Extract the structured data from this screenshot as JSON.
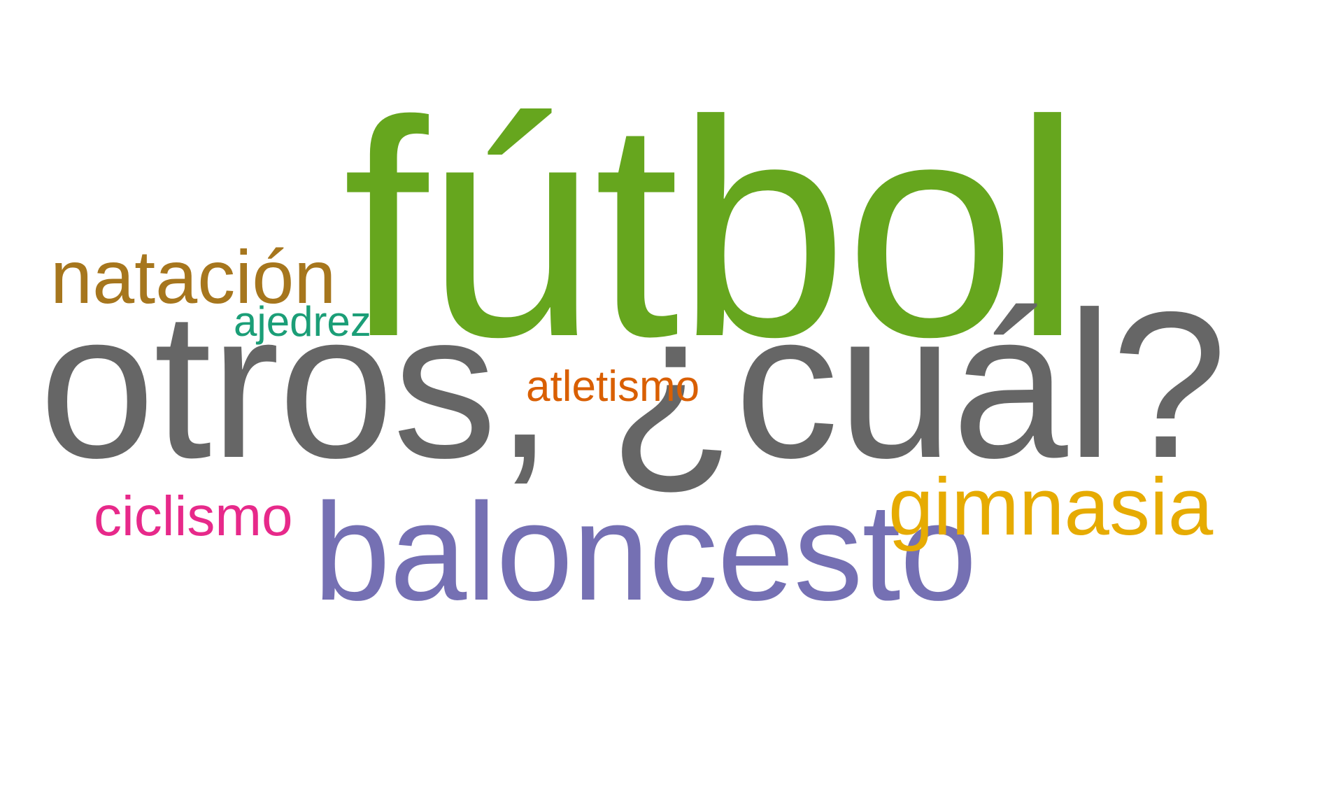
{
  "words": [
    {
      "text": "fútbol",
      "color": "#66a61e"
    },
    {
      "text": "otros, ¿cuál?",
      "color": "#666666"
    },
    {
      "text": "natación",
      "color": "#a6761d"
    },
    {
      "text": "ajedrez",
      "color": "#1b9e77"
    },
    {
      "text": "atletismo",
      "color": "#d95f02"
    },
    {
      "text": "baloncesto",
      "color": "#7570b3"
    },
    {
      "text": "ciclismo",
      "color": "#e7298a"
    },
    {
      "text": "gimnasia",
      "color": "#e6ab02"
    }
  ]
}
